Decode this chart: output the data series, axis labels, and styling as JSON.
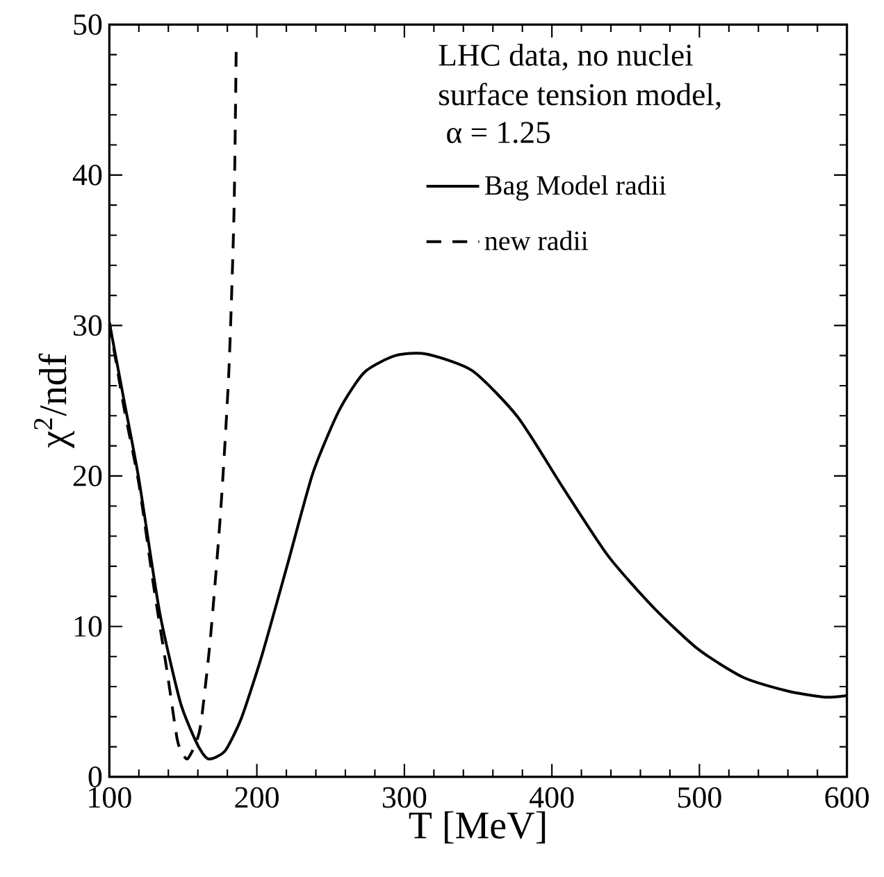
{
  "chart_data": {
    "type": "line",
    "xlabel": "T [MeV]",
    "ylabel": "χ$^{2}$/ndf",
    "annotations": [
      "LHC data, no nuclei",
      "surface tension model,",
      " α = 1.25"
    ],
    "xlim": [
      100,
      600
    ],
    "ylim": [
      0,
      50
    ],
    "xticks": [
      100,
      200,
      300,
      400,
      500,
      600
    ],
    "yticks": [
      0,
      10,
      20,
      30,
      40,
      50
    ],
    "legend": "top right",
    "grid": false,
    "marker": "none",
    "series": [
      {
        "name": "Bag Model radii",
        "color": "#000000",
        "line_style": "solid",
        "x": [
          100,
          110,
          120,
          134,
          148,
          158,
          163,
          167,
          172,
          179,
          189.5,
          203.5,
          221,
          238,
          256,
          273,
          294,
          315,
          346,
          377,
          407,
          438,
          468.5,
          499,
          530,
          560,
          585,
          600
        ],
        "values": [
          30.2,
          25.0,
          19.8,
          11.0,
          5.0,
          2.5,
          1.6,
          1.2,
          1.3,
          1.8,
          3.9,
          8.1,
          14.2,
          20.2,
          24.4,
          26.9,
          28.0,
          28.1,
          27.0,
          23.9,
          19.3,
          14.7,
          11.3,
          8.5,
          6.6,
          5.7,
          5.3,
          5.4
        ]
      },
      {
        "name": "new radii",
        "color": "#000000",
        "line_style": "dashed",
        "x": [
          100,
          110,
          120,
          130,
          139,
          146,
          150,
          153,
          158,
          162,
          168.5,
          175.5,
          181,
          184.5,
          186
        ],
        "values": [
          30.2,
          24.5,
          19.5,
          12.7,
          7.1,
          2.5,
          1.5,
          1.2,
          2.1,
          3.5,
          9.2,
          17.7,
          26.9,
          37.5,
          48.5
        ]
      }
    ]
  }
}
